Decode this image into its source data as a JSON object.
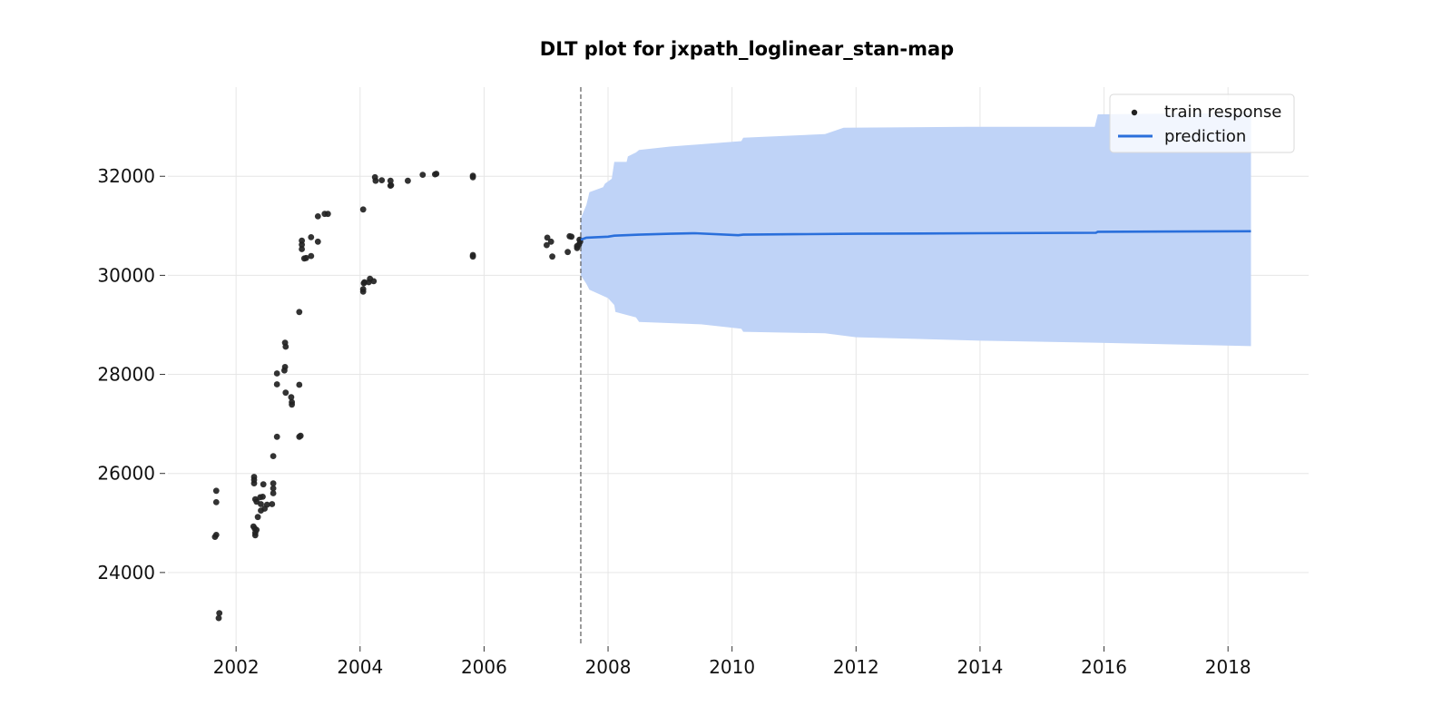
{
  "chart_data": {
    "type": "scatter",
    "title": "DLT plot for jxpath_loglinear_stan-map",
    "xlabel": "",
    "ylabel": "",
    "xlim": [
      2000.9,
      2019.3
    ],
    "ylim": [
      22550,
      33800
    ],
    "x_ticks": [
      2002,
      2004,
      2006,
      2008,
      2010,
      2012,
      2014,
      2016,
      2018
    ],
    "x_tick_labels": [
      "2002",
      "2004",
      "2006",
      "2008",
      "2010",
      "2012",
      "2014",
      "2016",
      "2018"
    ],
    "y_ticks": [
      24000,
      26000,
      28000,
      30000,
      32000
    ],
    "y_tick_labels": [
      "24000",
      "26000",
      "28000",
      "30000",
      "32000"
    ],
    "grid": true,
    "legend_position": "top-right",
    "forecast_start": 2007.56,
    "series": [
      {
        "name": "train response",
        "kind": "scatter",
        "color": "#222222",
        "points": [
          [
            2001.68,
            25650
          ],
          [
            2001.68,
            25420
          ],
          [
            2001.68,
            24760
          ],
          [
            2001.66,
            24720
          ],
          [
            2001.73,
            23180
          ],
          [
            2001.72,
            23080
          ],
          [
            2002.29,
            25930
          ],
          [
            2002.29,
            25870
          ],
          [
            2002.29,
            25800
          ],
          [
            2002.31,
            25480
          ],
          [
            2002.33,
            25430
          ],
          [
            2002.28,
            24930
          ],
          [
            2002.3,
            24890
          ],
          [
            2002.33,
            24860
          ],
          [
            2002.31,
            24800
          ],
          [
            2002.31,
            24750
          ],
          [
            2002.35,
            25120
          ],
          [
            2002.39,
            25520
          ],
          [
            2002.43,
            25530
          ],
          [
            2002.4,
            25380
          ],
          [
            2002.4,
            25250
          ],
          [
            2002.44,
            25780
          ],
          [
            2002.46,
            25290
          ],
          [
            2002.5,
            25370
          ],
          [
            2002.58,
            25380
          ],
          [
            2002.6,
            25800
          ],
          [
            2002.6,
            25700
          ],
          [
            2002.6,
            25600
          ],
          [
            2002.6,
            26350
          ],
          [
            2002.66,
            26740
          ],
          [
            2002.66,
            28020
          ],
          [
            2002.66,
            27800
          ],
          [
            2002.79,
            28640
          ],
          [
            2002.8,
            28560
          ],
          [
            2002.79,
            28150
          ],
          [
            2002.78,
            28080
          ],
          [
            2002.8,
            27630
          ],
          [
            2002.89,
            27540
          ],
          [
            2002.9,
            27440
          ],
          [
            2002.9,
            27390
          ],
          [
            2003.02,
            29260
          ],
          [
            2003.02,
            27790
          ],
          [
            2003.04,
            26760
          ],
          [
            2003.02,
            26740
          ],
          [
            2003.06,
            30700
          ],
          [
            2003.06,
            30620
          ],
          [
            2003.06,
            30530
          ],
          [
            2003.1,
            30340
          ],
          [
            2003.13,
            30350
          ],
          [
            2003.21,
            30770
          ],
          [
            2003.21,
            30390
          ],
          [
            2003.32,
            30680
          ],
          [
            2003.32,
            31190
          ],
          [
            2003.43,
            31240
          ],
          [
            2003.48,
            31240
          ],
          [
            2004.05,
            31330
          ],
          [
            2004.06,
            29840
          ],
          [
            2004.07,
            29860
          ],
          [
            2004.05,
            29720
          ],
          [
            2004.05,
            29670
          ],
          [
            2004.16,
            29930
          ],
          [
            2004.14,
            29860
          ],
          [
            2004.22,
            29880
          ],
          [
            2004.24,
            31980
          ],
          [
            2004.25,
            31910
          ],
          [
            2004.35,
            31920
          ],
          [
            2004.49,
            31910
          ],
          [
            2004.5,
            31820
          ],
          [
            2004.49,
            31810
          ],
          [
            2004.77,
            31910
          ],
          [
            2005.01,
            32030
          ],
          [
            2005.21,
            32040
          ],
          [
            2005.23,
            32050
          ],
          [
            2005.82,
            32010
          ],
          [
            2005.82,
            31980
          ],
          [
            2005.82,
            30410
          ],
          [
            2005.82,
            30380
          ],
          [
            2007.02,
            30760
          ],
          [
            2007.01,
            30610
          ],
          [
            2007.08,
            30680
          ],
          [
            2007.1,
            30380
          ],
          [
            2007.35,
            30470
          ],
          [
            2007.38,
            30790
          ],
          [
            2007.41,
            30780
          ],
          [
            2007.5,
            30590
          ],
          [
            2007.5,
            30550
          ],
          [
            2007.53,
            30620
          ],
          [
            2007.54,
            30720
          ],
          [
            2007.55,
            30680
          ]
        ]
      },
      {
        "name": "prediction",
        "kind": "line",
        "color": "#2a6fdb",
        "band_color": "#bfd3f7",
        "points": [
          [
            2007.56,
            30720
          ],
          [
            2007.65,
            30760
          ],
          [
            2008.0,
            30780
          ],
          [
            2008.1,
            30800
          ],
          [
            2008.5,
            30820
          ],
          [
            2009.0,
            30840
          ],
          [
            2009.4,
            30850
          ],
          [
            2010.1,
            30810
          ],
          [
            2010.18,
            30820
          ],
          [
            2011.0,
            30830
          ],
          [
            2012.0,
            30840
          ],
          [
            2014.0,
            30850
          ],
          [
            2015.87,
            30860
          ],
          [
            2015.9,
            30880
          ],
          [
            2018.37,
            30890
          ]
        ],
        "upper": [
          [
            2007.56,
            31150
          ],
          [
            2007.65,
            31420
          ],
          [
            2007.68,
            31580
          ],
          [
            2007.7,
            31680
          ],
          [
            2007.92,
            31780
          ],
          [
            2007.95,
            31850
          ],
          [
            2008.06,
            31950
          ],
          [
            2008.1,
            32290
          ],
          [
            2008.3,
            32290
          ],
          [
            2008.32,
            32400
          ],
          [
            2008.45,
            32480
          ],
          [
            2008.5,
            32530
          ],
          [
            2009.0,
            32600
          ],
          [
            2010.15,
            32710
          ],
          [
            2010.18,
            32780
          ],
          [
            2011.5,
            32850
          ],
          [
            2011.8,
            32980
          ],
          [
            2013.8,
            33000
          ],
          [
            2015.85,
            33000
          ],
          [
            2015.9,
            33250
          ],
          [
            2018.37,
            33280
          ]
        ],
        "lower": [
          [
            2007.56,
            30000
          ],
          [
            2007.65,
            29830
          ],
          [
            2007.7,
            29710
          ],
          [
            2008.0,
            29540
          ],
          [
            2008.1,
            29400
          ],
          [
            2008.12,
            29260
          ],
          [
            2008.45,
            29150
          ],
          [
            2008.5,
            29060
          ],
          [
            2009.5,
            29010
          ],
          [
            2010.15,
            28920
          ],
          [
            2010.18,
            28860
          ],
          [
            2011.5,
            28830
          ],
          [
            2012.0,
            28750
          ],
          [
            2014.0,
            28680
          ],
          [
            2015.85,
            28640
          ],
          [
            2018.37,
            28570
          ]
        ]
      }
    ]
  }
}
